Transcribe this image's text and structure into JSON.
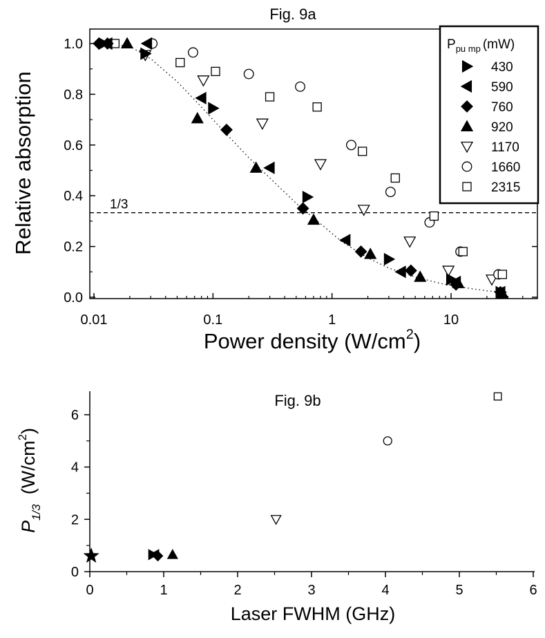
{
  "chart_data": [
    {
      "type": "scatter",
      "title": "Fig. 9a",
      "xlabel": "Power density (W/cm",
      "xlabel_sup": "2",
      "xlabel_end": ")",
      "ylabel": "Relative absorption",
      "xscale": "log",
      "xlim": [
        0.01,
        40
      ],
      "ylim": [
        0,
        1.05
      ],
      "xticks": [
        {
          "value": 0.01,
          "label": "0.01"
        },
        {
          "value": 0.1,
          "label": "0.1"
        },
        {
          "value": 1,
          "label": "1"
        },
        {
          "value": 10,
          "label": "10"
        }
      ],
      "yticks": [
        {
          "value": 0.0,
          "label": "0.0"
        },
        {
          "value": 0.2,
          "label": "0.2"
        },
        {
          "value": 0.4,
          "label": "0.4"
        },
        {
          "value": 0.6,
          "label": "0.6"
        },
        {
          "value": 0.8,
          "label": "0.8"
        },
        {
          "value": 1.0,
          "label": "1.0"
        }
      ],
      "reference_line": {
        "y": 0.3333,
        "label": "1/3",
        "style": "dashed"
      },
      "legend": {
        "title_main": "P",
        "title_sub": "pu mp",
        "title_unit": "(mW)",
        "position": "top-right"
      },
      "fit_curve": [
        [
          0.011,
          1.0
        ],
        [
          0.02,
          0.99
        ],
        [
          0.03,
          0.94
        ],
        [
          0.05,
          0.85
        ],
        [
          0.08,
          0.75
        ],
        [
          0.12,
          0.66
        ],
        [
          0.2,
          0.55
        ],
        [
          0.3,
          0.47
        ],
        [
          0.5,
          0.37
        ],
        [
          0.8,
          0.29
        ],
        [
          1.2,
          0.22
        ],
        [
          2.0,
          0.155
        ],
        [
          3.0,
          0.115
        ],
        [
          5.0,
          0.08
        ],
        [
          8.0,
          0.055
        ],
        [
          12.0,
          0.04
        ],
        [
          20.0,
          0.025
        ],
        [
          27.0,
          0.02
        ]
      ],
      "series": [
        {
          "name": "430",
          "marker": "triangle-right",
          "filled": true,
          "points": [
            [
              0.012,
              1.0
            ],
            [
              0.027,
              0.96
            ],
            [
              0.1,
              0.745
            ],
            [
              0.62,
              0.395
            ],
            [
              3.0,
              0.15
            ],
            [
              10.0,
              0.07
            ],
            [
              26.0,
              0.02
            ]
          ]
        },
        {
          "name": "590",
          "marker": "triangle-left",
          "filled": true,
          "points": [
            [
              0.013,
              1.0
            ],
            [
              0.028,
              1.0
            ],
            [
              0.08,
              0.785
            ],
            [
              0.3,
              0.51
            ],
            [
              1.3,
              0.225
            ],
            [
              3.8,
              0.1
            ],
            [
              11.0,
              0.06
            ],
            [
              26.0,
              0.02
            ]
          ]
        },
        {
          "name": "760",
          "marker": "diamond",
          "filled": true,
          "points": [
            [
              0.011,
              1.0
            ],
            [
              0.013,
              1.0
            ],
            [
              0.13,
              0.66
            ],
            [
              0.57,
              0.35
            ],
            [
              1.75,
              0.18
            ],
            [
              4.6,
              0.105
            ],
            [
              11.0,
              0.05
            ],
            [
              26.0,
              0.02
            ]
          ]
        },
        {
          "name": "920",
          "marker": "triangle-up",
          "filled": true,
          "points": [
            [
              0.019,
              1.0
            ],
            [
              0.074,
              0.705
            ],
            [
              0.23,
              0.51
            ],
            [
              0.7,
              0.305
            ],
            [
              2.1,
              0.17
            ],
            [
              5.5,
              0.08
            ],
            [
              11.5,
              0.055
            ],
            [
              27.0,
              0.015
            ]
          ]
        },
        {
          "name": "1170",
          "marker": "triangle-down",
          "filled": false,
          "points": [
            [
              0.027,
              0.955
            ],
            [
              0.083,
              0.855
            ],
            [
              0.26,
              0.685
            ],
            [
              0.8,
              0.525
            ],
            [
              1.85,
              0.345
            ],
            [
              4.5,
              0.22
            ],
            [
              9.5,
              0.105
            ],
            [
              22.0,
              0.07
            ]
          ]
        },
        {
          "name": "1660",
          "marker": "circle",
          "filled": false,
          "points": [
            [
              0.031,
              1.0
            ],
            [
              0.068,
              0.965
            ],
            [
              0.2,
              0.88
            ],
            [
              0.54,
              0.83
            ],
            [
              1.45,
              0.6
            ],
            [
              3.1,
              0.415
            ],
            [
              6.6,
              0.295
            ],
            [
              12.0,
              0.18
            ],
            [
              25.0,
              0.09
            ]
          ]
        },
        {
          "name": "2315",
          "marker": "square",
          "filled": false,
          "points": [
            [
              0.015,
              1.0
            ],
            [
              0.053,
              0.925
            ],
            [
              0.105,
              0.89
            ],
            [
              0.3,
              0.79
            ],
            [
              0.75,
              0.75
            ],
            [
              1.8,
              0.575
            ],
            [
              3.4,
              0.47
            ],
            [
              7.2,
              0.32
            ],
            [
              12.6,
              0.18
            ],
            [
              27.0,
              0.09
            ]
          ]
        }
      ]
    },
    {
      "type": "scatter",
      "title": "Fig. 9b",
      "xlabel": "Laser FWHM (GHz)",
      "ylabel_main": "P",
      "ylabel_sub": "1/3",
      "ylabel_unit_pre": "(W/cm",
      "ylabel_unit_sup": "2",
      "ylabel_unit_post": ")",
      "xlim": [
        0,
        6
      ],
      "ylim": [
        0,
        7
      ],
      "xticks": [
        {
          "value": 0,
          "label": "0"
        },
        {
          "value": 1,
          "label": "1"
        },
        {
          "value": 2,
          "label": "2"
        },
        {
          "value": 3,
          "label": "3"
        },
        {
          "value": 4,
          "label": "4"
        },
        {
          "value": 5,
          "label": "5"
        },
        {
          "value": 6,
          "label": "6"
        }
      ],
      "yticks": [
        {
          "value": 0,
          "label": "0"
        },
        {
          "value": 2,
          "label": "2"
        },
        {
          "value": 4,
          "label": "4"
        },
        {
          "value": 6,
          "label": "6"
        }
      ],
      "points": [
        {
          "x": 0.02,
          "y": 0.6,
          "marker": "star",
          "filled": true
        },
        {
          "x": 0.85,
          "y": 0.65,
          "marker": "triangle-right",
          "filled": true
        },
        {
          "x": 0.88,
          "y": 0.65,
          "marker": "triangle-left",
          "filled": true
        },
        {
          "x": 0.92,
          "y": 0.6,
          "marker": "diamond",
          "filled": true
        },
        {
          "x": 1.12,
          "y": 0.65,
          "marker": "triangle-up",
          "filled": true
        },
        {
          "x": 2.52,
          "y": 2.0,
          "marker": "triangle-down",
          "filled": false
        },
        {
          "x": 4.03,
          "y": 5.0,
          "marker": "circle",
          "filled": false
        },
        {
          "x": 5.52,
          "y": 6.7,
          "marker": "square",
          "filled": false
        }
      ]
    }
  ]
}
